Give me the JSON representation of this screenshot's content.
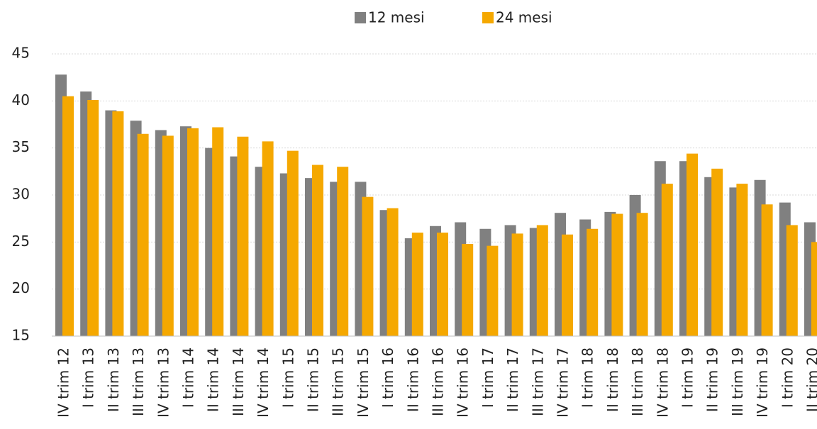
{
  "chart_data": {
    "type": "bar",
    "categories": [
      "IV trim 12",
      "I trim 13",
      "II trim 13",
      "III trim 13",
      "IV trim 13",
      "I trim 14",
      "II trim 14",
      "III trim 14",
      "IV trim 14",
      "I trim 15",
      "II trim 15",
      "III trim 15",
      "IV trim 15",
      "I trim 16",
      "II trim 16",
      "III trim 16",
      "IV trim 16",
      "I trim 17",
      "II trim 17",
      "III trim 17",
      "IV trim 17",
      "I trim 18",
      "II trim 18",
      "III trim 18",
      "IV trim 18",
      "I trim 19",
      "II trim 19",
      "III trim 19",
      "IV trim 19",
      "I trim 20",
      "II trim 20"
    ],
    "series": [
      {
        "name": "12 mesi",
        "color": "#808080",
        "values": [
          42.8,
          41.0,
          39.0,
          37.9,
          36.9,
          37.3,
          35.0,
          34.1,
          33.0,
          32.3,
          31.8,
          31.4,
          31.4,
          28.4,
          25.4,
          26.7,
          27.1,
          26.4,
          26.8,
          26.5,
          28.1,
          27.4,
          28.2,
          30.0,
          33.6,
          33.6,
          31.9,
          30.8,
          31.6,
          29.2,
          27.1
        ]
      },
      {
        "name": "24 mesi",
        "color": "#f5a800",
        "values": [
          40.5,
          40.1,
          38.9,
          36.5,
          36.3,
          37.1,
          37.2,
          36.2,
          35.7,
          34.7,
          33.2,
          33.0,
          29.8,
          28.6,
          26.0,
          26.0,
          24.8,
          24.6,
          25.9,
          26.8,
          25.8,
          26.4,
          28.0,
          28.1,
          31.2,
          34.4,
          32.8,
          31.2,
          29.0,
          26.8,
          25.0
        ]
      }
    ],
    "ylim": [
      15,
      45
    ],
    "yticks": [
      15,
      20,
      25,
      30,
      35,
      40,
      45
    ],
    "grid": true
  }
}
